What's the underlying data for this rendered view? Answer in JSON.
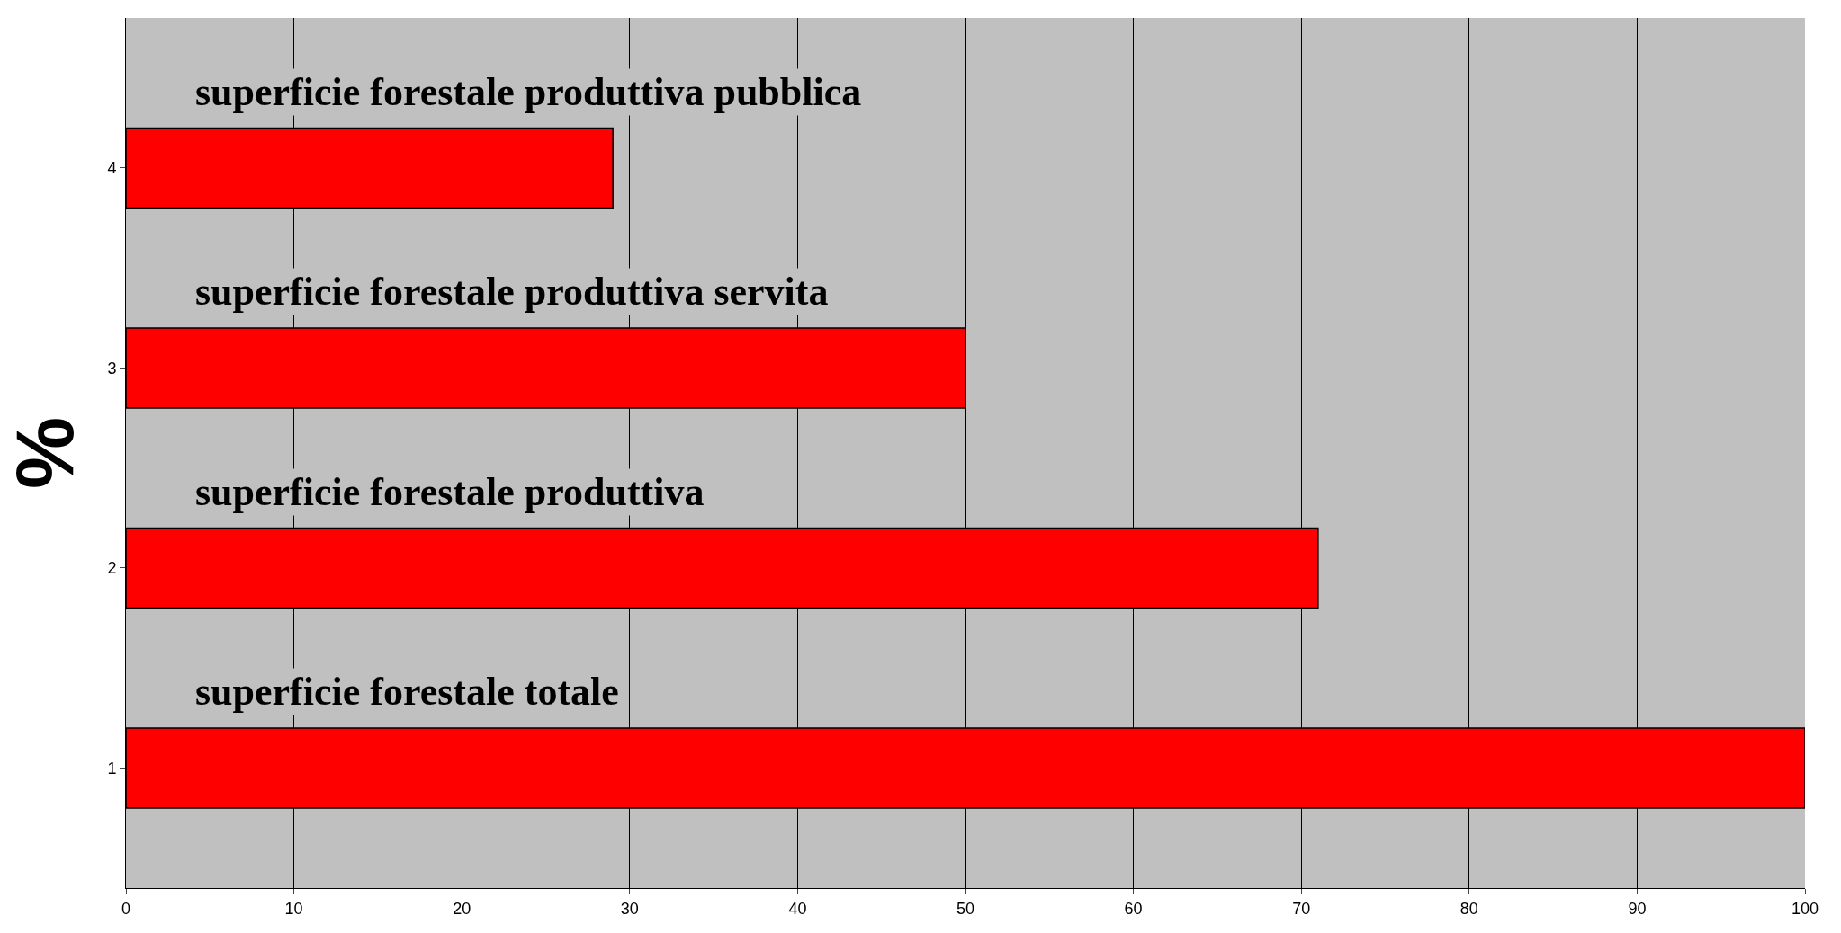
{
  "chart_data": {
    "type": "bar",
    "orientation": "horizontal",
    "categories": [
      "4",
      "3",
      "2",
      "1"
    ],
    "values": [
      29,
      50,
      71,
      100
    ],
    "color": "#ff0000",
    "ylabel": "%",
    "xlim": [
      0,
      100
    ],
    "xticks": [
      0,
      10,
      20,
      30,
      40,
      50,
      60,
      70,
      80,
      90,
      100
    ],
    "grid": "x",
    "annotations": [
      "superficie forestale produttiva pubblica",
      "superficie forestale produttiva servita",
      "superficie forestale produttiva",
      "superficie forestale totale"
    ]
  }
}
